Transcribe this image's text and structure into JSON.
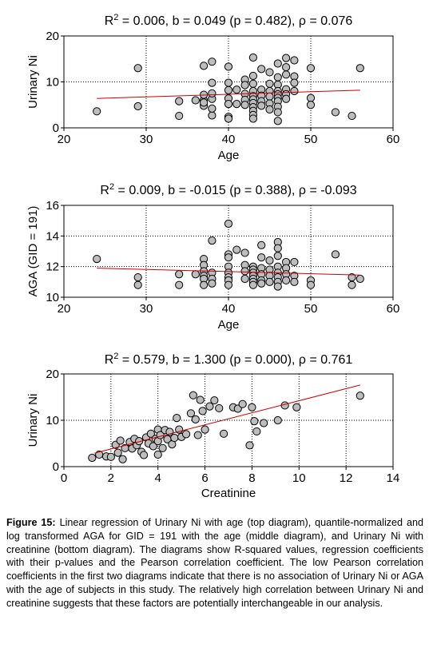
{
  "chart_data": [
    {
      "type": "scatter",
      "title": {
        "prefix": "R",
        "sup": "2",
        "rest": " = 0.006, b = 0.049 (p = 0.482), ρ = 0.076"
      },
      "xlabel": "Age",
      "ylabel": "Urinary Ni",
      "xlim": [
        20,
        60
      ],
      "ylim": [
        0,
        20
      ],
      "xticks": [
        "20",
        "30",
        "40",
        "50",
        "60"
      ],
      "xtick_values": [
        20,
        30,
        40,
        50,
        60
      ],
      "yticks": [
        "0",
        "10",
        "20"
      ],
      "ytick_values": [
        0,
        10,
        20
      ],
      "grid": "dotted at interior ticks",
      "marker_color": "#bdbdbd",
      "line_color": "#cc0000",
      "regression": {
        "x": [
          24,
          56
        ],
        "y": [
          6.4,
          8.2
        ]
      },
      "points": [
        [
          24,
          3.6
        ],
        [
          29,
          13
        ],
        [
          29,
          4.7
        ],
        [
          34,
          5.8
        ],
        [
          34,
          2.6
        ],
        [
          36,
          6
        ],
        [
          37,
          6
        ],
        [
          37,
          13.5
        ],
        [
          37,
          4.8
        ],
        [
          37,
          7.2
        ],
        [
          37,
          5.5
        ],
        [
          38,
          14.4
        ],
        [
          38,
          9.8
        ],
        [
          38,
          6.3
        ],
        [
          38,
          2.7
        ],
        [
          38,
          7.5
        ],
        [
          38,
          4.2
        ],
        [
          40,
          13.3
        ],
        [
          40,
          9.8
        ],
        [
          40,
          8.2
        ],
        [
          40,
          6.4
        ],
        [
          40,
          5.2
        ],
        [
          40,
          2.4
        ],
        [
          40,
          2.0
        ],
        [
          41,
          8.3
        ],
        [
          41,
          5.2
        ],
        [
          42,
          10.5
        ],
        [
          42,
          9.3
        ],
        [
          42,
          7.4
        ],
        [
          42,
          6.1
        ],
        [
          42,
          5.0
        ],
        [
          43,
          15.3
        ],
        [
          43,
          11.3
        ],
        [
          43,
          9.6
        ],
        [
          43,
          8.0
        ],
        [
          43,
          6.9
        ],
        [
          43,
          6.2
        ],
        [
          43,
          5.4
        ],
        [
          43,
          4.5
        ],
        [
          43,
          3.7
        ],
        [
          43,
          2.8
        ],
        [
          43,
          2.0
        ],
        [
          44,
          12.8
        ],
        [
          44,
          8.3
        ],
        [
          44,
          7.0
        ],
        [
          44,
          5.8
        ],
        [
          44,
          4.8
        ],
        [
          45,
          12.1
        ],
        [
          45,
          9.6
        ],
        [
          45,
          8.0
        ],
        [
          45,
          6.8
        ],
        [
          45,
          5.3
        ],
        [
          45,
          4.0
        ],
        [
          46,
          14.0
        ],
        [
          46,
          11.0
        ],
        [
          46,
          9.4
        ],
        [
          46,
          8.0
        ],
        [
          46,
          7.3
        ],
        [
          46,
          6.5
        ],
        [
          46,
          5.8
        ],
        [
          46,
          4.6
        ],
        [
          46,
          3.4
        ],
        [
          46,
          1.5
        ],
        [
          47,
          15.2
        ],
        [
          47,
          13.2
        ],
        [
          47,
          11.6
        ],
        [
          47,
          8.4
        ],
        [
          47,
          7.3
        ],
        [
          47,
          6.3
        ],
        [
          48,
          14.7
        ],
        [
          48,
          11.2
        ],
        [
          48,
          9.8
        ],
        [
          48,
          8.0
        ],
        [
          50,
          13.0
        ],
        [
          50,
          6.5
        ],
        [
          50,
          5.0
        ],
        [
          53,
          3.4
        ],
        [
          55,
          2.6
        ],
        [
          56,
          13.0
        ]
      ]
    },
    {
      "type": "scatter",
      "title": {
        "prefix": "R",
        "sup": "2",
        "rest": " = 0.009, b = -0.015 (p = 0.388), ρ = -0.093"
      },
      "xlabel": "Age",
      "ylabel": "AGA (GID = 191)",
      "xlim": [
        20,
        60
      ],
      "ylim": [
        10,
        16
      ],
      "xticks": [
        "20",
        "30",
        "40",
        "50",
        "60"
      ],
      "xtick_values": [
        20,
        30,
        40,
        50,
        60
      ],
      "yticks": [
        "10",
        "12",
        "14",
        "16"
      ],
      "ytick_values": [
        10,
        12,
        14,
        16
      ],
      "grid": "dotted at interior ticks",
      "marker_color": "#bdbdbd",
      "line_color": "#cc0000",
      "regression": {
        "x": [
          24,
          56
        ],
        "y": [
          11.9,
          11.45
        ]
      },
      "points": [
        [
          24,
          12.5
        ],
        [
          29,
          11.3
        ],
        [
          29,
          10.8
        ],
        [
          34,
          11.5
        ],
        [
          34,
          10.8
        ],
        [
          36,
          11.5
        ],
        [
          37,
          12.5
        ],
        [
          37,
          12.1
        ],
        [
          37,
          11.7
        ],
        [
          37,
          11.4
        ],
        [
          37,
          11.2
        ],
        [
          37,
          10.8
        ],
        [
          38,
          13.7
        ],
        [
          38,
          11.6
        ],
        [
          38,
          11.2
        ],
        [
          38,
          10.9
        ],
        [
          40,
          14.8
        ],
        [
          40,
          12.8
        ],
        [
          40,
          12.6
        ],
        [
          40,
          12.0
        ],
        [
          40,
          11.6
        ],
        [
          40,
          11.3
        ],
        [
          40,
          11.1
        ],
        [
          40,
          10.8
        ],
        [
          41,
          13.1
        ],
        [
          42,
          12.9
        ],
        [
          42,
          12.1
        ],
        [
          42,
          11.7
        ],
        [
          42,
          11.2
        ],
        [
          43,
          12.0
        ],
        [
          43,
          11.8
        ],
        [
          43,
          11.6
        ],
        [
          43,
          11.4
        ],
        [
          43,
          11.2
        ],
        [
          43,
          11.0
        ],
        [
          43,
          10.8
        ],
        [
          44,
          13.4
        ],
        [
          44,
          12.6
        ],
        [
          44,
          11.9
        ],
        [
          44,
          11.5
        ],
        [
          44,
          11.1
        ],
        [
          44,
          10.9
        ],
        [
          45,
          12.4
        ],
        [
          45,
          11.8
        ],
        [
          45,
          11.4
        ],
        [
          45,
          11.0
        ],
        [
          46,
          13.6
        ],
        [
          46,
          13.2
        ],
        [
          46,
          12.7
        ],
        [
          46,
          12.0
        ],
        [
          46,
          11.6
        ],
        [
          46,
          11.3
        ],
        [
          46,
          11.0
        ],
        [
          46,
          10.7
        ],
        [
          47,
          12.3
        ],
        [
          47,
          11.9
        ],
        [
          47,
          11.5
        ],
        [
          47,
          11.1
        ],
        [
          48,
          12.3
        ],
        [
          48,
          11.4
        ],
        [
          48,
          11.0
        ],
        [
          50,
          11.1
        ],
        [
          50,
          10.8
        ],
        [
          53,
          12.8
        ],
        [
          55,
          11.3
        ],
        [
          55,
          10.8
        ],
        [
          56,
          11.2
        ]
      ]
    },
    {
      "type": "scatter",
      "title": {
        "prefix": "R",
        "sup": "2",
        "rest": " = 0.579, b = 1.300 (p = 0.000), ρ = 0.761"
      },
      "xlabel": "Creatinine",
      "ylabel": "Urinary Ni",
      "xlim": [
        0,
        14
      ],
      "ylim": [
        0,
        20
      ],
      "xticks": [
        "0",
        "2",
        "4",
        "6",
        "8",
        "10",
        "12",
        "14"
      ],
      "xtick_values": [
        0,
        2,
        4,
        6,
        8,
        10,
        12,
        14
      ],
      "yticks": [
        "0",
        "10",
        "20"
      ],
      "ytick_values": [
        0,
        10,
        20
      ],
      "grid": "dotted at interior ticks",
      "marker_color": "#bdbdbd",
      "line_color": "#cc0000",
      "regression": {
        "x": [
          1.3,
          12.6
        ],
        "y": [
          2.9,
          17.6
        ]
      },
      "points": [
        [
          1.2,
          1.9
        ],
        [
          1.5,
          2.6
        ],
        [
          1.8,
          2.2
        ],
        [
          2.0,
          2.1
        ],
        [
          2.2,
          4.7
        ],
        [
          2.3,
          3.0
        ],
        [
          2.4,
          5.6
        ],
        [
          2.5,
          1.6
        ],
        [
          2.6,
          4.0
        ],
        [
          2.8,
          5.3
        ],
        [
          2.9,
          3.9
        ],
        [
          3.0,
          6.0
        ],
        [
          3.1,
          4.6
        ],
        [
          3.2,
          5.5
        ],
        [
          3.3,
          3.2
        ],
        [
          3.4,
          2.5
        ],
        [
          3.5,
          6.3
        ],
        [
          3.6,
          5.0
        ],
        [
          3.7,
          7.1
        ],
        [
          3.8,
          4.4
        ],
        [
          3.9,
          6.0
        ],
        [
          4.0,
          8.0
        ],
        [
          4.0,
          5.5
        ],
        [
          4.0,
          2.6
        ],
        [
          4.1,
          6.8
        ],
        [
          4.2,
          4.0
        ],
        [
          4.3,
          7.9
        ],
        [
          4.4,
          5.9
        ],
        [
          4.5,
          7.5
        ],
        [
          4.6,
          4.8
        ],
        [
          4.7,
          6.2
        ],
        [
          4.8,
          10.5
        ],
        [
          4.9,
          8.0
        ],
        [
          5.0,
          6.4
        ],
        [
          5.2,
          7.0
        ],
        [
          5.4,
          11.5
        ],
        [
          5.5,
          15.4
        ],
        [
          5.6,
          10.2
        ],
        [
          5.7,
          6.8
        ],
        [
          5.8,
          14.4
        ],
        [
          5.9,
          12.0
        ],
        [
          6.0,
          8.0
        ],
        [
          6.2,
          13.0
        ],
        [
          6.4,
          14.3
        ],
        [
          6.6,
          12.6
        ],
        [
          6.8,
          7.1
        ],
        [
          7.2,
          12.8
        ],
        [
          7.4,
          12.5
        ],
        [
          7.6,
          13.5
        ],
        [
          7.9,
          4.6
        ],
        [
          8.0,
          12.8
        ],
        [
          8.1,
          9.8
        ],
        [
          8.2,
          7.6
        ],
        [
          8.5,
          9.4
        ],
        [
          9.1,
          10.0
        ],
        [
          9.4,
          13.2
        ],
        [
          9.9,
          12.8
        ],
        [
          12.6,
          15.3
        ]
      ]
    }
  ],
  "caption": {
    "label": "Figure 15:",
    "text": " Linear regression of Urinary Ni with age (top diagram), quantile-normalized and log transformed AGA for GID = 191 with the age (middle diagram), and Urinary Ni with creatinine (bottom diagram). The diagrams show R-squared values, regression coefficients with their p-values and the Pearson correlation coefficient. The low Pearson correlation coefficients in the first two diagrams indicate that there is no association of Urinary Ni or AGA with the age of subjects in this study. The relatively high correlation between Urinary Ni and creatinine suggests that these factors are potentially interchangeable in our analysis."
  }
}
